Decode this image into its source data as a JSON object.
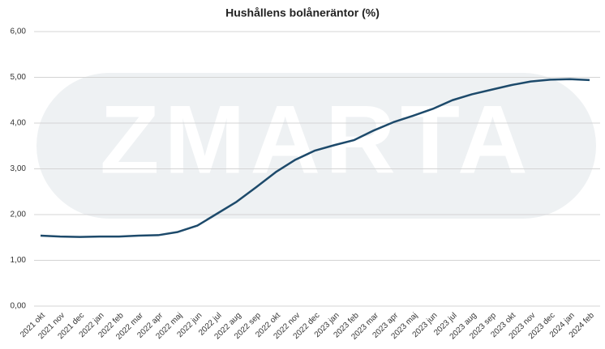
{
  "chart_data": {
    "type": "line",
    "title": "Hushållens bolåneräntor (%)",
    "watermark": "ZMARTA",
    "categories": [
      "2021 okt",
      "2021 nov",
      "2021 dec",
      "2022 jan",
      "2022 feb",
      "2022 mar",
      "2022 apr",
      "2022 maj",
      "2022 jun",
      "2022 jul",
      "2022 aug",
      "2022 sep",
      "2022 okt",
      "2022 nov",
      "2022 dec",
      "2023 jan",
      "2023 feb",
      "2023 mar",
      "2023 apr",
      "2023 maj",
      "2023 jun",
      "2023 jul",
      "2023 aug",
      "2023 sep",
      "2023 okt",
      "2023 nov",
      "2023 dec",
      "2024 jan",
      "2024 feb"
    ],
    "series": [
      {
        "color": "#1d4a6b",
        "values": [
          1.54,
          1.52,
          1.51,
          1.52,
          1.52,
          1.54,
          1.55,
          1.62,
          1.76,
          2.02,
          2.28,
          2.6,
          2.93,
          3.2,
          3.4,
          3.52,
          3.63,
          3.84,
          4.02,
          4.16,
          4.31,
          4.5,
          4.63,
          4.73,
          4.83,
          4.91,
          4.95,
          4.96,
          4.94
        ]
      }
    ],
    "ylim": [
      0,
      6
    ],
    "yticks": [
      {
        "value": 0,
        "label": "0,00"
      },
      {
        "value": 1,
        "label": "1,00"
      },
      {
        "value": 2,
        "label": "2,00"
      },
      {
        "value": 3,
        "label": "3,00"
      },
      {
        "value": 4,
        "label": "4,00"
      },
      {
        "value": 5,
        "label": "5,00"
      },
      {
        "value": 6,
        "label": "6,00"
      }
    ],
    "grid": true
  }
}
